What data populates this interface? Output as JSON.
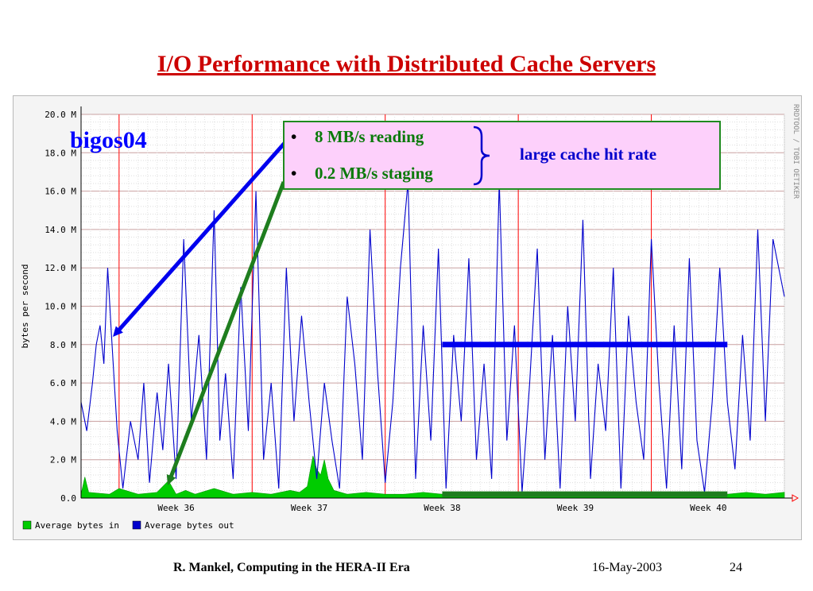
{
  "slide": {
    "title": "I/O Performance with Distributed Cache Servers",
    "host_label": "bigos04",
    "footer": {
      "text": "R. Mankel, Computing in the HERA-II Era",
      "date": "16-May-2003",
      "page": "24"
    }
  },
  "callout": {
    "bullets": [
      "8 MB/s reading",
      "0.2 MB/s staging"
    ],
    "bullet_symbol": "•",
    "brace_note": "large cache hit rate"
  },
  "chart_data": {
    "type": "area",
    "ylabel": "bytes per second",
    "side_label": "RRDTOOL / TOBI OETIKER",
    "ylim": [
      0,
      20
    ],
    "yunit": "M",
    "y_ticks": [
      "0.0",
      "2.0 M",
      "4.0 M",
      "6.0 M",
      "8.0 M",
      "10.0 M",
      "12.0 M",
      "14.0 M",
      "16.0 M",
      "18.0 M",
      "20.0 M"
    ],
    "x_range_days": [
      0,
      37
    ],
    "week_ticks": [
      {
        "label": "Week 36",
        "day": 5
      },
      {
        "label": "Week 37",
        "day": 12
      },
      {
        "label": "Week 38",
        "day": 19
      },
      {
        "label": "Week 39",
        "day": 26
      },
      {
        "label": "Week 40",
        "day": 33
      }
    ],
    "red_markers_days": [
      2,
      9,
      16,
      23,
      30
    ],
    "series": [
      {
        "name": "Average bytes in",
        "color": "#00cc00",
        "x": [
          0,
          0.2,
          0.4,
          1.5,
          2,
          3,
          4,
          4.6,
          5,
          5.5,
          6,
          7,
          8,
          9,
          10,
          11,
          11.5,
          11.9,
          12.2,
          12.4,
          12.6,
          12.8,
          13,
          13.3,
          14,
          15,
          16,
          17,
          18,
          19,
          20,
          21,
          22,
          23,
          24,
          25,
          26,
          27,
          28,
          29,
          30,
          31,
          32,
          33,
          34,
          35,
          36,
          37
        ],
        "y": [
          0.2,
          1.1,
          0.3,
          0.2,
          0.5,
          0.2,
          0.3,
          0.9,
          0.2,
          0.4,
          0.2,
          0.5,
          0.2,
          0.3,
          0.2,
          0.4,
          0.3,
          0.6,
          2.2,
          1.5,
          1.2,
          2.0,
          1.0,
          0.4,
          0.2,
          0.3,
          0.2,
          0.2,
          0.3,
          0.2,
          0.2,
          0.2,
          0.3,
          0.2,
          0.2,
          0.2,
          0.3,
          0.2,
          0.2,
          0.2,
          0.2,
          0.3,
          0.2,
          0.2,
          0.2,
          0.3,
          0.2,
          0.3
        ]
      },
      {
        "name": "Average bytes out",
        "color": "#0000cc",
        "x": [
          0,
          0.3,
          0.6,
          0.8,
          1,
          1.2,
          1.4,
          1.6,
          1.9,
          2.2,
          2.6,
          3,
          3.3,
          3.6,
          4,
          4.3,
          4.6,
          5,
          5.4,
          5.8,
          6.2,
          6.6,
          7,
          7.3,
          7.6,
          8,
          8.4,
          8.8,
          9.2,
          9.6,
          10,
          10.4,
          10.8,
          11.2,
          11.6,
          12,
          12.4,
          12.8,
          13.2,
          13.6,
          14,
          14.4,
          14.8,
          15.2,
          15.6,
          16,
          16.4,
          16.8,
          17.2,
          17.6,
          18,
          18.4,
          18.8,
          19.2,
          19.6,
          20,
          20.4,
          20.8,
          21.2,
          21.6,
          22,
          22.4,
          22.8,
          23.2,
          23.6,
          24,
          24.4,
          24.8,
          25.2,
          25.6,
          26,
          26.4,
          26.8,
          27.2,
          27.6,
          28,
          28.4,
          28.8,
          29.2,
          29.6,
          30,
          30.4,
          30.8,
          31.2,
          31.6,
          32,
          32.4,
          32.8,
          33.2,
          33.6,
          34,
          34.4,
          34.8,
          35.2,
          35.6,
          36,
          36.4,
          37
        ],
        "y": [
          5,
          3.5,
          6,
          8,
          9,
          7,
          12,
          8.5,
          3.5,
          0.5,
          4,
          2,
          6,
          0.8,
          5.5,
          2.5,
          7,
          1,
          13.5,
          4,
          8.5,
          2,
          15,
          3,
          6.5,
          1,
          11,
          3.5,
          16,
          2,
          6,
          0.5,
          12,
          4,
          9.5,
          5,
          1,
          6,
          3,
          0.5,
          10.5,
          7,
          2,
          14,
          6.5,
          0.8,
          5,
          12,
          16.5,
          1,
          9,
          3,
          13,
          0.5,
          8.5,
          4,
          12.5,
          2,
          7,
          1,
          16.5,
          3,
          9,
          0.3,
          6,
          13,
          2,
          8.5,
          0.5,
          10,
          4,
          14.5,
          1,
          7,
          3.5,
          12,
          0.5,
          9.5,
          5,
          2,
          13.5,
          6,
          0.5,
          9,
          1.5,
          12.5,
          3,
          0.3,
          5,
          12,
          5,
          1.5,
          8.5,
          3,
          14,
          4,
          13.5,
          10.5
        ]
      }
    ],
    "overlay_levels": [
      {
        "name": "reading",
        "value": 8,
        "color": "#0000ee",
        "from_day": 19,
        "to_day": 34
      },
      {
        "name": "staging",
        "value": 0.2,
        "color": "#1e7d1e",
        "from_day": 19,
        "to_day": 34
      }
    ],
    "legend_position": "bottom-left",
    "grid": true
  }
}
